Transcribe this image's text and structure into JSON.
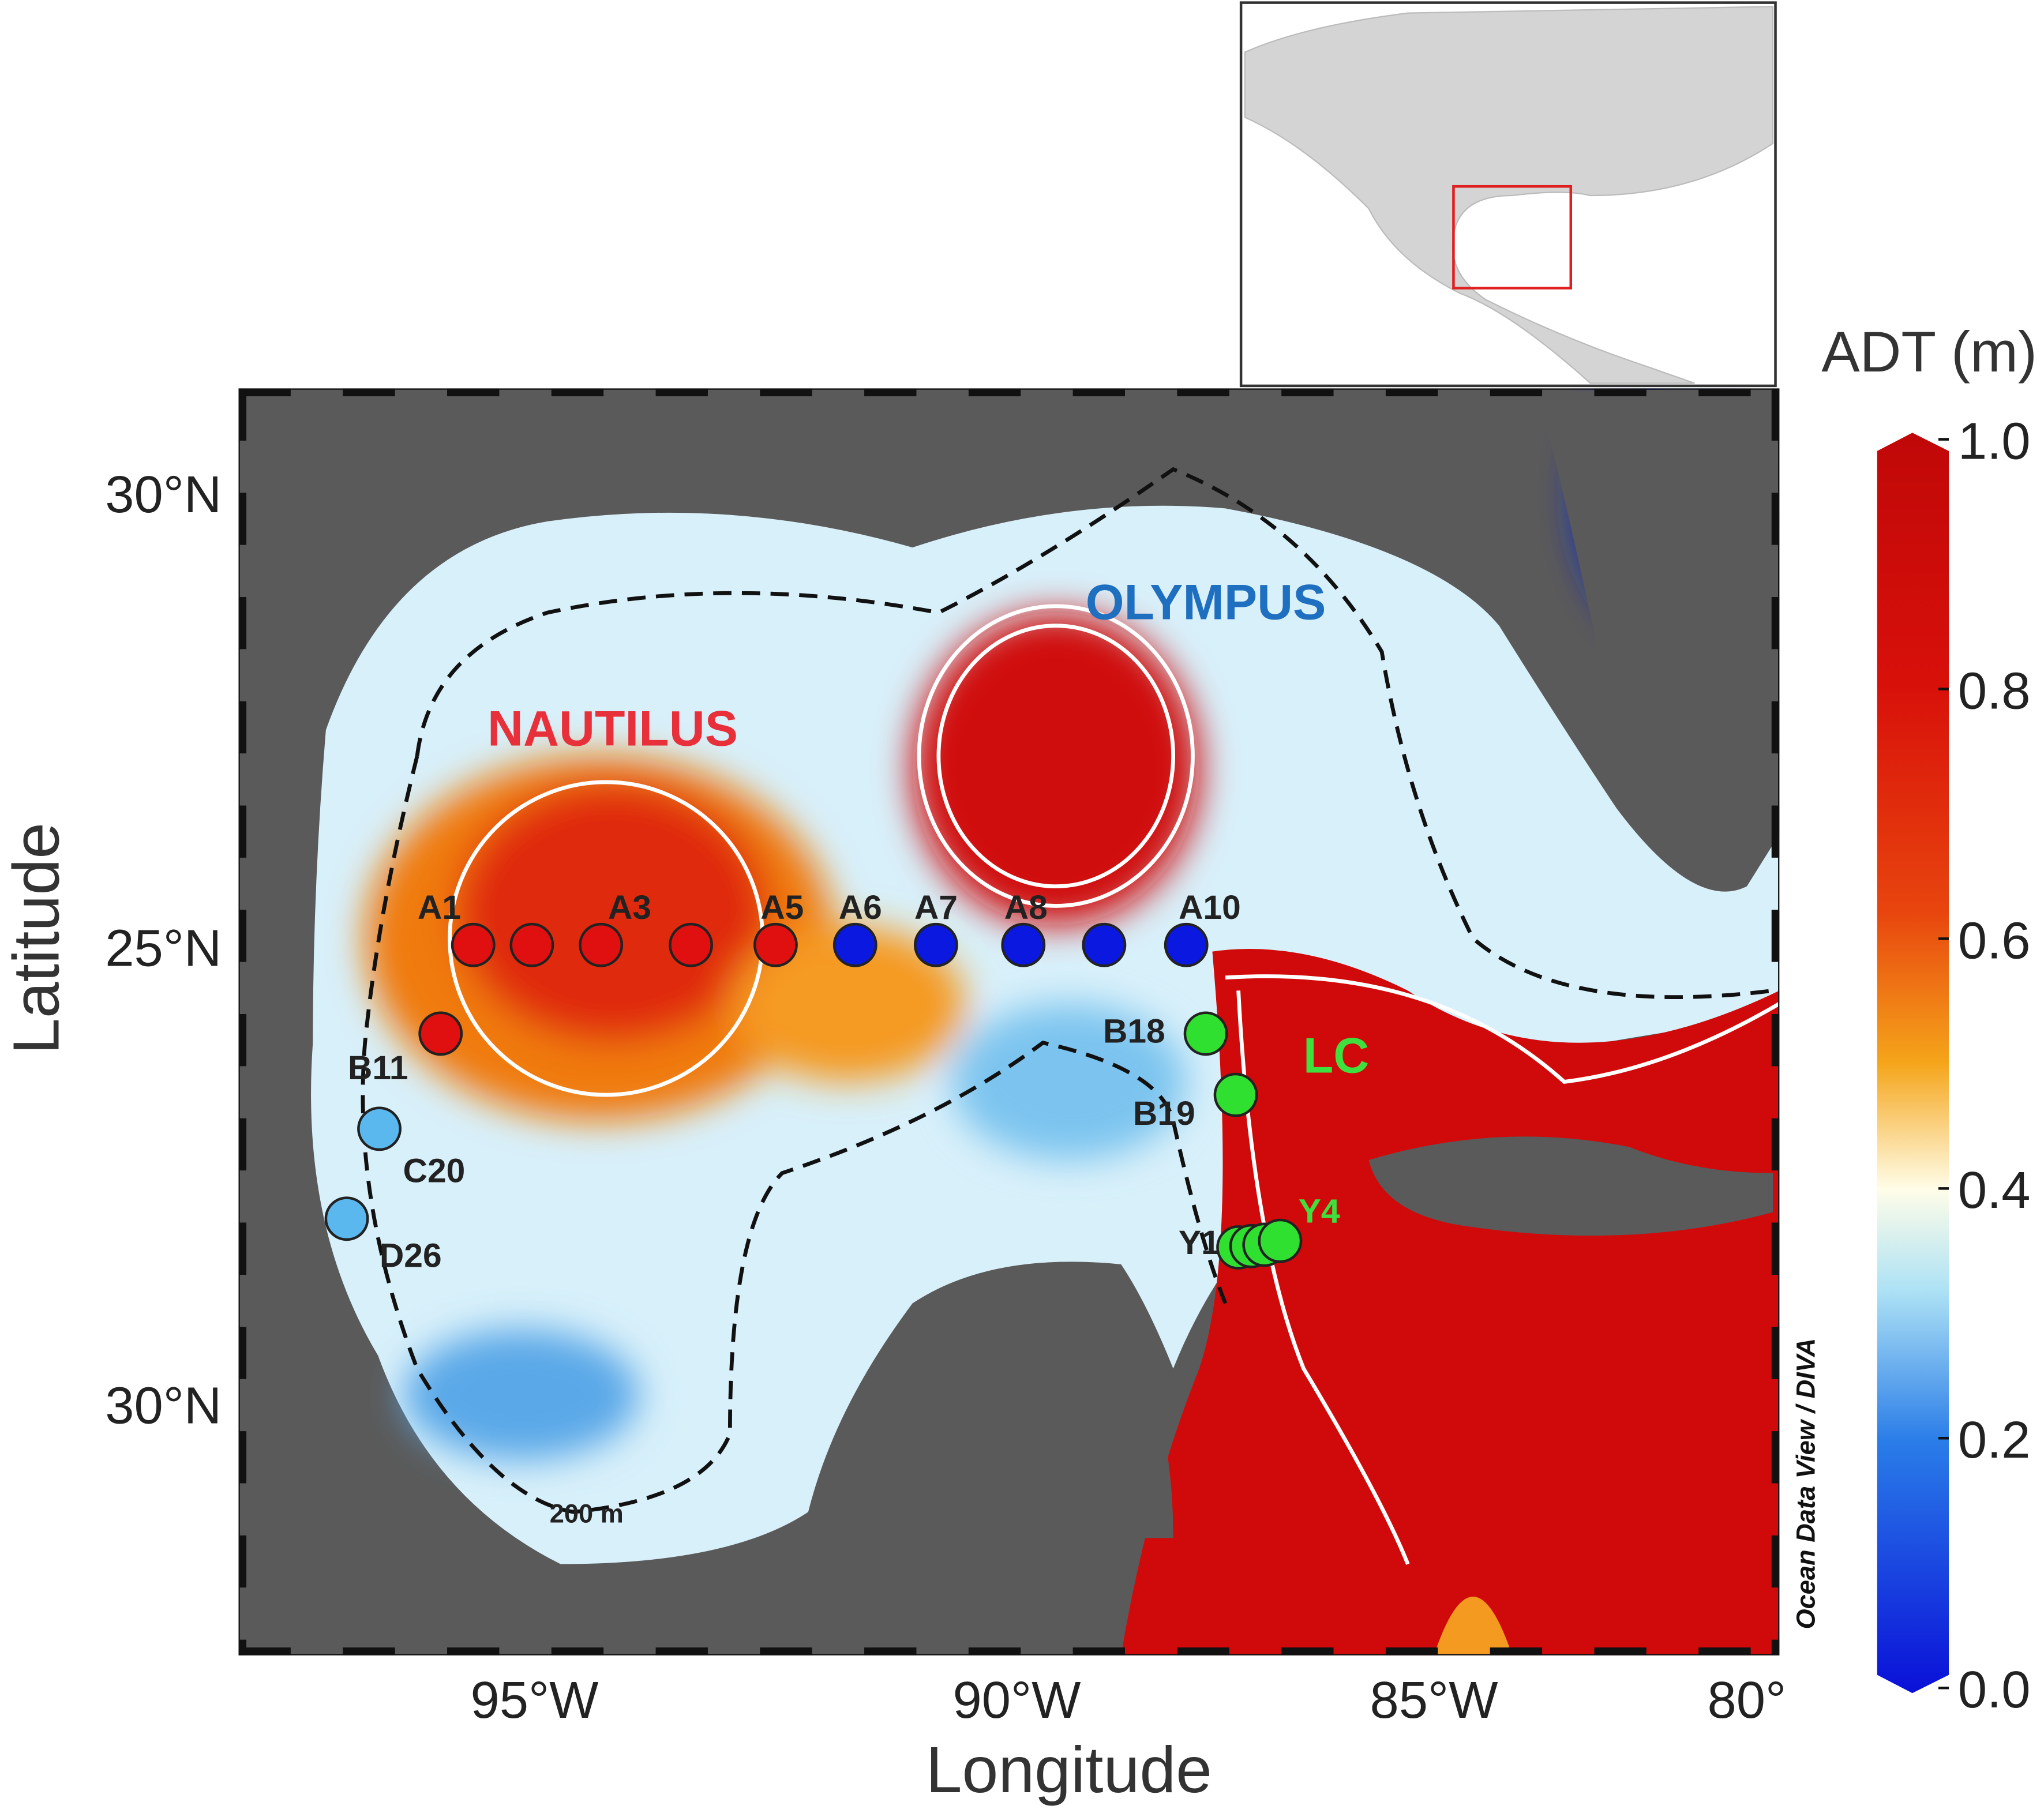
{
  "axes": {
    "x_label": "Longitude",
    "y_label": "Latitude",
    "x_ticks": [
      "95°W",
      "90°W",
      "85°W",
      "80°"
    ],
    "y_ticks": [
      "30°N",
      "25°N",
      "30°N"
    ]
  },
  "colorbar": {
    "title": "ADT (m)",
    "ticks": [
      {
        "value": 0,
        "label": "0.0"
      },
      {
        "value": 0.2,
        "label": "0.2"
      },
      {
        "value": 0.4,
        "label": "0.4"
      },
      {
        "value": 0.6,
        "label": "0.6"
      },
      {
        "value": 0.8,
        "label": "0.8"
      },
      {
        "value": 1,
        "label": "1.0"
      }
    ],
    "range": [
      0,
      1
    ]
  },
  "regions": [
    "NAUTILUS",
    "OLYMPUS",
    "LC"
  ],
  "stations": [
    "A1",
    "A3",
    "A5",
    "A6",
    "A7",
    "A8",
    "A10",
    "B11",
    "C20",
    "D26",
    "B18",
    "B19",
    "Y1",
    "Y4"
  ],
  "contour_label": "200 m",
  "credit": "Ocean Data View / DIVA"
}
